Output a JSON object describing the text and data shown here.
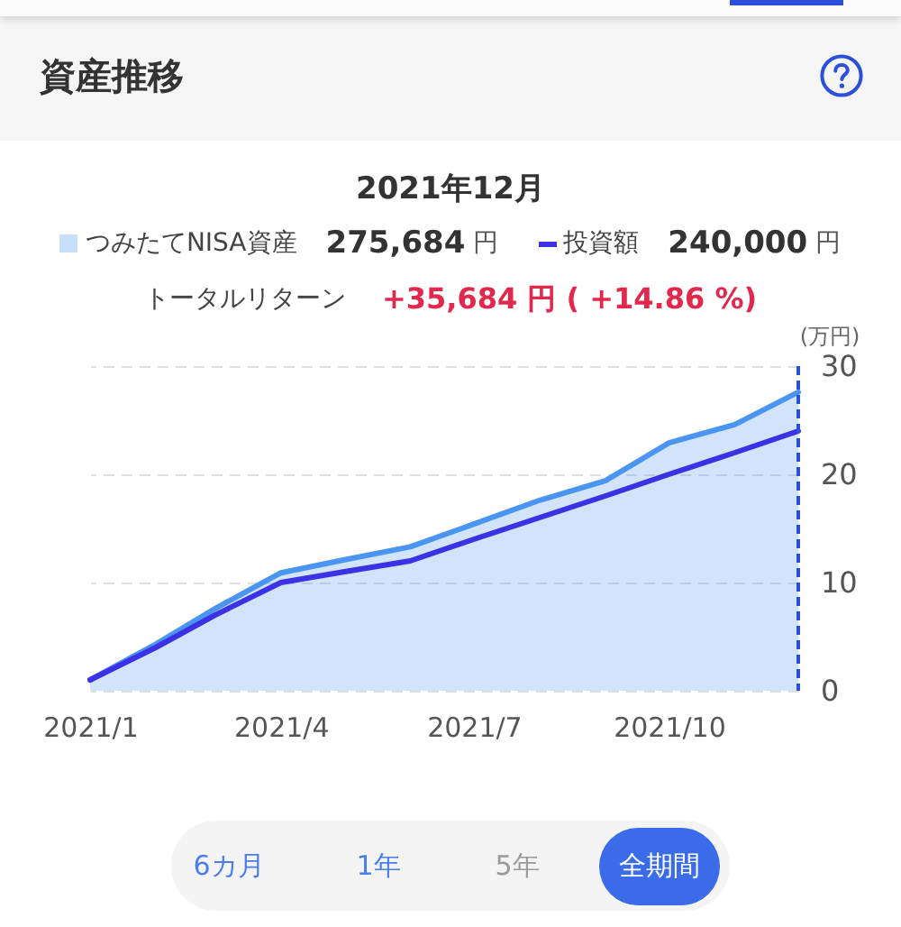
{
  "chart_data": {
    "type": "area",
    "title": "資産推移",
    "subtitle": "2021年12月",
    "ylabel": "(万円)",
    "x": [
      "2021-01",
      "2021-02",
      "2021-03",
      "2021-04",
      "2021-05",
      "2021-06",
      "2021-07",
      "2021-08",
      "2021-09",
      "2021-10",
      "2021-11",
      "2021-12"
    ],
    "series": [
      {
        "name": "つみたてNISA資産",
        "color": "#4a94f2",
        "values": [
          1.0,
          4.3,
          7.6,
          10.9,
          12.1,
          13.3,
          15.4,
          17.6,
          19.4,
          22.9,
          24.6,
          27.6
        ]
      },
      {
        "name": "投資額",
        "type": "line",
        "color": "#3b32e6",
        "values": [
          1,
          4,
          7,
          10,
          11,
          12,
          14,
          16,
          18,
          20,
          22,
          24
        ]
      }
    ],
    "xlim": [
      "2021-01",
      "2021-12"
    ],
    "xticks": [
      {
        "value": "2021-01",
        "label": "2021/1"
      },
      {
        "value": "2021-04",
        "label": "2021/4"
      },
      {
        "value": "2021-07",
        "label": "2021/7"
      },
      {
        "value": "2021-10",
        "label": "2021/10"
      }
    ],
    "ylim": [
      0,
      30
    ],
    "yticks": [
      0,
      10,
      20,
      30
    ],
    "grid": "y",
    "legend": "top",
    "ref_lines": [
      {
        "axis": "x",
        "value": "2021-12",
        "color": "#2b4fd8",
        "line_style": "dashed"
      }
    ],
    "annotations": [
      "275,684 円",
      "240,000 円",
      "トータルリターン",
      "+35,684 円 ( +14.86 %)",
      "6カ月",
      "1年",
      "5年",
      "全期間"
    ]
  }
}
